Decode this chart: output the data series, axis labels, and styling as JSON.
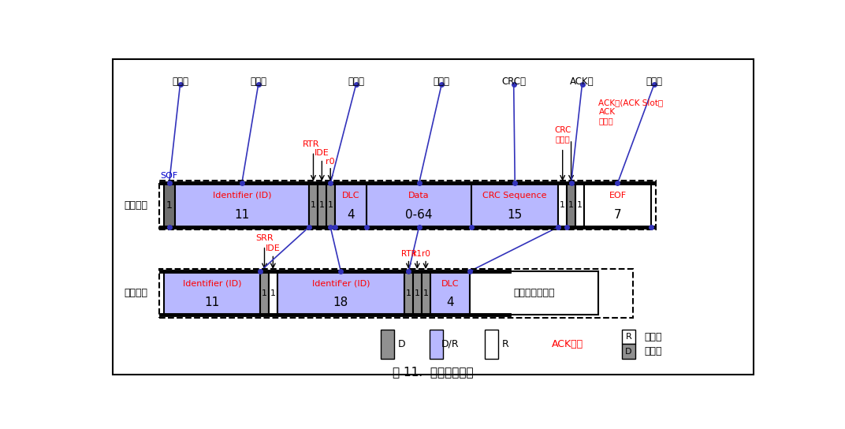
{
  "title": "图 11.  数据帧的构成",
  "bg_color": "#ffffff",
  "blue_fill": "#b8b8ff",
  "gray_fill": "#909090",
  "white_fill": "#ffffff",
  "footer": "图 11.  数据帧的构成",
  "top_section_labels": [
    "帧起始",
    "仲裁段",
    "控制段",
    "数据段",
    "CRC段",
    "ACK段",
    "帧结束"
  ],
  "std_label": "标准格式",
  "ext_label": "扩展格式",
  "legend_D": "D",
  "legend_DR": "D/R",
  "legend_R": "R",
  "legend_ack": "ACK位槽",
  "legend_send": "发送位",
  "legend_recv": "接收位",
  "SOF": "SOF",
  "RTR": "RTR",
  "IDE": "IDE",
  "r0": "r0",
  "r1": "r1",
  "SRR": "SRR",
  "CRC_del": "CRC\n界定符",
  "ACK_slot_label": "ACK槽(ACK Slot）\nACK\n界定符",
  "EOF": "EOF",
  "same_label": "与标准格式相同"
}
